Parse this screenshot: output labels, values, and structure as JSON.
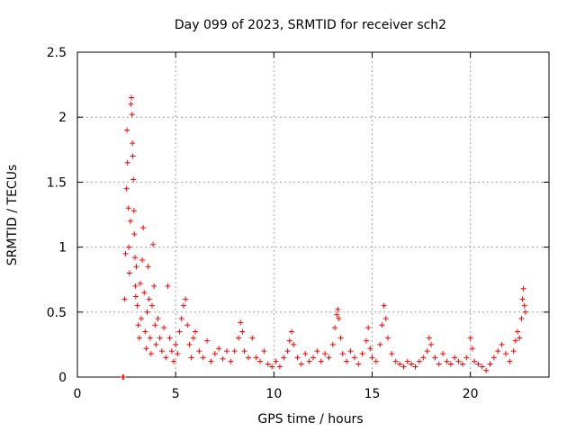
{
  "chart_data": {
    "type": "scatter",
    "title": "Day 099 of 2023, SRMTID for receiver sch2",
    "xlabel": "GPS time / hours",
    "ylabel": "SRMTID / TECUs",
    "xlim": [
      0,
      24
    ],
    "ylim": [
      0,
      2.5
    ],
    "x_ticks": [
      0,
      5,
      10,
      15,
      20
    ],
    "y_ticks": [
      0,
      0.5,
      1,
      1.5,
      2,
      2.5
    ],
    "x_tick_labels": [
      "0",
      "5",
      "10",
      "15",
      "20"
    ],
    "y_tick_labels": [
      "0",
      "0.5",
      "1",
      "1.5",
      "2",
      "2.5"
    ],
    "grid": true,
    "marker": "+",
    "series": [
      {
        "name": "sch2",
        "color": "#ff0000",
        "points": [
          [
            2.3,
            0.0
          ],
          [
            2.35,
            0.0
          ],
          [
            2.4,
            0.6
          ],
          [
            2.45,
            0.95
          ],
          [
            2.5,
            1.45
          ],
          [
            2.52,
            1.9
          ],
          [
            2.55,
            1.65
          ],
          [
            2.6,
            1.3
          ],
          [
            2.62,
            1.0
          ],
          [
            2.65,
            0.8
          ],
          [
            2.7,
            1.2
          ],
          [
            2.72,
            2.1
          ],
          [
            2.75,
            2.15
          ],
          [
            2.78,
            2.02
          ],
          [
            2.8,
            1.8
          ],
          [
            2.82,
            1.7
          ],
          [
            2.85,
            1.52
          ],
          [
            2.88,
            1.28
          ],
          [
            2.9,
            1.1
          ],
          [
            2.93,
            0.92
          ],
          [
            2.95,
            0.7
          ],
          [
            2.97,
            0.62
          ],
          [
            3.0,
            0.85
          ],
          [
            3.05,
            0.55
          ],
          [
            3.1,
            0.4
          ],
          [
            3.15,
            0.3
          ],
          [
            3.2,
            0.72
          ],
          [
            3.25,
            0.45
          ],
          [
            3.3,
            0.9
          ],
          [
            3.35,
            1.15
          ],
          [
            3.4,
            0.65
          ],
          [
            3.45,
            0.35
          ],
          [
            3.5,
            0.22
          ],
          [
            3.55,
            0.5
          ],
          [
            3.6,
            0.85
          ],
          [
            3.65,
            0.6
          ],
          [
            3.7,
            0.3
          ],
          [
            3.75,
            0.18
          ],
          [
            3.8,
            0.55
          ],
          [
            3.85,
            1.02
          ],
          [
            3.9,
            0.7
          ],
          [
            3.95,
            0.4
          ],
          [
            4.0,
            0.25
          ],
          [
            4.1,
            0.45
          ],
          [
            4.2,
            0.3
          ],
          [
            4.3,
            0.2
          ],
          [
            4.4,
            0.38
          ],
          [
            4.5,
            0.15
          ],
          [
            4.6,
            0.7
          ],
          [
            4.7,
            0.3
          ],
          [
            4.8,
            0.2
          ],
          [
            4.9,
            0.12
          ],
          [
            5.0,
            0.25
          ],
          [
            5.1,
            0.18
          ],
          [
            5.2,
            0.35
          ],
          [
            5.3,
            0.45
          ],
          [
            5.4,
            0.55
          ],
          [
            5.5,
            0.6
          ],
          [
            5.6,
            0.4
          ],
          [
            5.7,
            0.25
          ],
          [
            5.8,
            0.15
          ],
          [
            5.9,
            0.3
          ],
          [
            6.0,
            0.35
          ],
          [
            6.2,
            0.2
          ],
          [
            6.4,
            0.15
          ],
          [
            6.6,
            0.28
          ],
          [
            6.8,
            0.12
          ],
          [
            7.0,
            0.18
          ],
          [
            7.2,
            0.22
          ],
          [
            7.4,
            0.14
          ],
          [
            7.6,
            0.2
          ],
          [
            7.8,
            0.12
          ],
          [
            8.0,
            0.2
          ],
          [
            8.2,
            0.3
          ],
          [
            8.3,
            0.42
          ],
          [
            8.4,
            0.35
          ],
          [
            8.5,
            0.2
          ],
          [
            8.7,
            0.15
          ],
          [
            8.9,
            0.3
          ],
          [
            9.1,
            0.15
          ],
          [
            9.3,
            0.12
          ],
          [
            9.5,
            0.2
          ],
          [
            9.7,
            0.1
          ],
          [
            9.9,
            0.08
          ],
          [
            10.1,
            0.12
          ],
          [
            10.3,
            0.08
          ],
          [
            10.5,
            0.15
          ],
          [
            10.7,
            0.2
          ],
          [
            10.8,
            0.28
          ],
          [
            10.9,
            0.35
          ],
          [
            11.0,
            0.25
          ],
          [
            11.2,
            0.15
          ],
          [
            11.4,
            0.1
          ],
          [
            11.6,
            0.18
          ],
          [
            11.8,
            0.12
          ],
          [
            12.0,
            0.15
          ],
          [
            12.2,
            0.2
          ],
          [
            12.4,
            0.12
          ],
          [
            12.6,
            0.18
          ],
          [
            12.8,
            0.15
          ],
          [
            13.0,
            0.25
          ],
          [
            13.1,
            0.38
          ],
          [
            13.2,
            0.48
          ],
          [
            13.25,
            0.52
          ],
          [
            13.3,
            0.45
          ],
          [
            13.4,
            0.3
          ],
          [
            13.5,
            0.18
          ],
          [
            13.7,
            0.12
          ],
          [
            13.9,
            0.2
          ],
          [
            14.1,
            0.15
          ],
          [
            14.3,
            0.1
          ],
          [
            14.5,
            0.18
          ],
          [
            14.7,
            0.28
          ],
          [
            14.8,
            0.38
          ],
          [
            14.9,
            0.22
          ],
          [
            15.0,
            0.15
          ],
          [
            15.2,
            0.12
          ],
          [
            15.4,
            0.25
          ],
          [
            15.5,
            0.4
          ],
          [
            15.6,
            0.55
          ],
          [
            15.7,
            0.45
          ],
          [
            15.8,
            0.3
          ],
          [
            16.0,
            0.18
          ],
          [
            16.2,
            0.12
          ],
          [
            16.4,
            0.1
          ],
          [
            16.6,
            0.08
          ],
          [
            16.8,
            0.12
          ],
          [
            17.0,
            0.1
          ],
          [
            17.2,
            0.08
          ],
          [
            17.4,
            0.12
          ],
          [
            17.6,
            0.15
          ],
          [
            17.8,
            0.2
          ],
          [
            17.9,
            0.3
          ],
          [
            18.0,
            0.25
          ],
          [
            18.2,
            0.15
          ],
          [
            18.4,
            0.1
          ],
          [
            18.6,
            0.18
          ],
          [
            18.8,
            0.12
          ],
          [
            19.0,
            0.1
          ],
          [
            19.2,
            0.15
          ],
          [
            19.4,
            0.12
          ],
          [
            19.6,
            0.1
          ],
          [
            19.8,
            0.15
          ],
          [
            20.0,
            0.3
          ],
          [
            20.1,
            0.22
          ],
          [
            20.2,
            0.12
          ],
          [
            20.4,
            0.1
          ],
          [
            20.6,
            0.08
          ],
          [
            20.8,
            0.05
          ],
          [
            21.0,
            0.1
          ],
          [
            21.2,
            0.15
          ],
          [
            21.4,
            0.2
          ],
          [
            21.6,
            0.25
          ],
          [
            21.8,
            0.18
          ],
          [
            22.0,
            0.12
          ],
          [
            22.2,
            0.2
          ],
          [
            22.3,
            0.28
          ],
          [
            22.4,
            0.35
          ],
          [
            22.5,
            0.3
          ],
          [
            22.6,
            0.45
          ],
          [
            22.65,
            0.6
          ],
          [
            22.7,
            0.68
          ],
          [
            22.75,
            0.55
          ],
          [
            22.8,
            0.5
          ]
        ]
      }
    ]
  }
}
